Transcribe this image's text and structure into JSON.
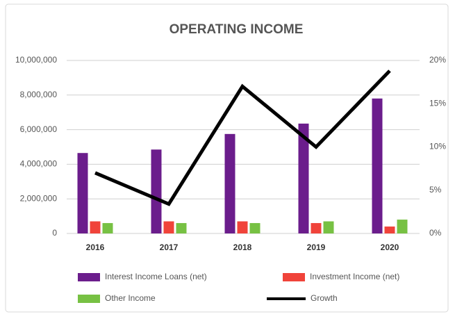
{
  "chart_data": {
    "type": "bar",
    "title": "OPERATING INCOME",
    "categories": [
      "2016",
      "2017",
      "2018",
      "2019",
      "2020"
    ],
    "series": [
      {
        "name": "Interest Income Loans (net)",
        "color": "#6b1d8c",
        "values": [
          4650000,
          4850000,
          5750000,
          6350000,
          7800000
        ]
      },
      {
        "name": "Investment Income (net)",
        "color": "#f0433a",
        "values": [
          700000,
          700000,
          700000,
          600000,
          400000
        ]
      },
      {
        "name": "Other Income",
        "color": "#77c143",
        "values": [
          600000,
          600000,
          600000,
          700000,
          800000
        ]
      },
      {
        "name": "Growth",
        "color": "#000000",
        "type": "line",
        "axis": "y2",
        "values": [
          7,
          3.4,
          17,
          10,
          18.8
        ]
      }
    ],
    "ylim": [
      0,
      10000000
    ],
    "yticks": [
      0,
      {
        "value": 2000000,
        "label": "2,000,000"
      },
      {
        "value": 4000000,
        "label": "4,000,000"
      },
      {
        "value": 6000000,
        "label": "6,000,000"
      },
      {
        "value": 8000000,
        "label": "8,000,000"
      },
      {
        "value": 10000000,
        "label": "10,000,000"
      }
    ],
    "y2lim": [
      0,
      20
    ],
    "y2ticks": [
      {
        "value": 0,
        "label": "0%"
      },
      {
        "value": 5,
        "label": "5%"
      },
      {
        "value": 10,
        "label": "10%"
      },
      {
        "value": 15,
        "label": "15%"
      },
      {
        "value": 20,
        "label": "20%"
      }
    ],
    "grid": true,
    "legend": "bottom"
  }
}
